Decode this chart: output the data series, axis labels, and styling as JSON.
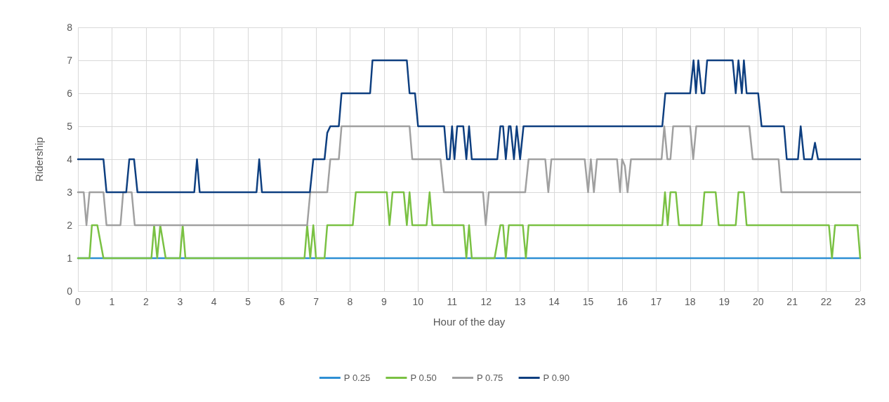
{
  "chart_data": {
    "type": "line",
    "xlabel": "Hour of the day",
    "ylabel": "Ridership",
    "xlim": [
      0,
      23
    ],
    "xticks": [
      0,
      1,
      2,
      3,
      4,
      5,
      6,
      7,
      8,
      9,
      10,
      11,
      12,
      13,
      14,
      15,
      16,
      17,
      18,
      19,
      20,
      21,
      22,
      23
    ],
    "ylim": [
      0,
      8
    ],
    "yticks": [
      0,
      1,
      2,
      3,
      4,
      5,
      6,
      7,
      8
    ],
    "grid": true,
    "legend": "bottom",
    "marker": "none",
    "line_style": "solid",
    "series": [
      {
        "name": "P 0.25",
        "color": "#2e8fd4",
        "x": [
          0,
          23
        ],
        "values": [
          1,
          1
        ]
      },
      {
        "name": "P 0.50",
        "color": "#7ac143",
        "x": [
          0,
          0.34,
          0.41,
          0.57,
          0.75,
          2.16,
          2.24,
          2.33,
          2.42,
          2.58,
          3.0,
          3.08,
          3.16,
          6.66,
          6.74,
          6.83,
          6.92,
          7.0,
          7.25,
          7.33,
          8.08,
          8.17,
          9.08,
          9.16,
          9.25,
          9.58,
          9.67,
          9.75,
          9.83,
          10.25,
          10.34,
          10.42,
          11.34,
          11.42,
          11.5,
          11.58,
          12.25,
          12.42,
          12.5,
          12.58,
          12.67,
          13.08,
          13.17,
          13.25,
          17.18,
          17.26,
          17.34,
          17.42,
          17.58,
          17.67,
          18.34,
          18.42,
          18.75,
          18.84,
          19.34,
          19.42,
          19.58,
          19.66,
          22.08,
          22.17,
          22.26,
          22.92,
          23
        ],
        "values": [
          1,
          1,
          2,
          2,
          1,
          1,
          2,
          1,
          2,
          1,
          1,
          2,
          1,
          1,
          2,
          1,
          2,
          1,
          1,
          2,
          2,
          3,
          3,
          2,
          3,
          3,
          2,
          3,
          2,
          2,
          3,
          2,
          2,
          1,
          2,
          1,
          1,
          2,
          2,
          1,
          2,
          2,
          1,
          2,
          2,
          3,
          2,
          3,
          3,
          2,
          2,
          3,
          3,
          2,
          2,
          3,
          3,
          2,
          2,
          1,
          2,
          2,
          1
        ]
      },
      {
        "name": "P 0.75",
        "color": "#a0a0a0",
        "x": [
          0,
          0.17,
          0.25,
          0.34,
          0.75,
          0.84,
          1.25,
          1.33,
          1.58,
          1.67,
          6.74,
          6.83,
          7.33,
          7.42,
          7.67,
          7.75,
          9.75,
          9.83,
          10.66,
          10.76,
          11.91,
          11.99,
          12.08,
          13.15,
          13.25,
          13.74,
          13.83,
          13.92,
          14.9,
          15.0,
          15.08,
          15.17,
          15.26,
          15.85,
          15.94,
          16.0,
          16.08,
          16.16,
          16.26,
          17.16,
          17.24,
          17.33,
          17.42,
          17.5,
          18.0,
          18.09,
          18.18,
          19.74,
          19.84,
          20.6,
          20.68,
          23
        ],
        "values": [
          3,
          3,
          2,
          3,
          3,
          2,
          2,
          3,
          3,
          2,
          2,
          3,
          3,
          4,
          4,
          5,
          5,
          4,
          4,
          3,
          3,
          2,
          3,
          3,
          4,
          4,
          3,
          4,
          4,
          3,
          4,
          3,
          4,
          4,
          3,
          4,
          3.8,
          3,
          4,
          4,
          5,
          4,
          4,
          5,
          5,
          4,
          5,
          5,
          4,
          4,
          3,
          3
        ]
      },
      {
        "name": "P 0.90",
        "color": "#0e3f80",
        "x": [
          0,
          0.75,
          0.84,
          1.42,
          1.51,
          1.65,
          1.75,
          3.42,
          3.5,
          3.58,
          5.25,
          5.33,
          5.41,
          6.82,
          6.92,
          7.25,
          7.33,
          7.42,
          7.67,
          7.75,
          8.59,
          8.66,
          9.67,
          9.75,
          9.91,
          10.0,
          10.77,
          10.85,
          10.93,
          11.0,
          11.07,
          11.15,
          11.33,
          11.42,
          11.5,
          11.58,
          12.33,
          12.42,
          12.5,
          12.58,
          12.67,
          12.72,
          12.82,
          12.9,
          13.0,
          13.1,
          17.18,
          17.27,
          18.0,
          18.1,
          18.17,
          18.24,
          18.34,
          18.42,
          18.5,
          19.25,
          19.34,
          19.42,
          19.52,
          19.58,
          19.66,
          20.0,
          20.1,
          20.76,
          20.84,
          21.17,
          21.25,
          21.35,
          21.58,
          21.67,
          21.76,
          23
        ],
        "values": [
          4,
          4,
          3,
          3,
          4,
          4,
          3,
          3,
          4,
          3,
          3,
          4,
          3,
          3,
          4,
          4,
          4.8,
          5,
          5,
          6,
          6,
          7,
          7,
          6,
          6,
          5,
          5,
          4,
          4,
          5,
          4,
          5,
          5,
          4,
          5,
          4,
          4,
          5,
          5,
          4,
          5,
          5,
          4,
          5,
          4,
          5,
          5,
          6,
          6,
          7,
          6,
          7,
          6,
          6,
          7,
          7,
          6,
          7,
          6,
          7,
          6,
          6,
          5,
          5,
          4,
          4,
          5,
          4,
          4,
          4.5,
          4,
          4
        ]
      }
    ]
  }
}
